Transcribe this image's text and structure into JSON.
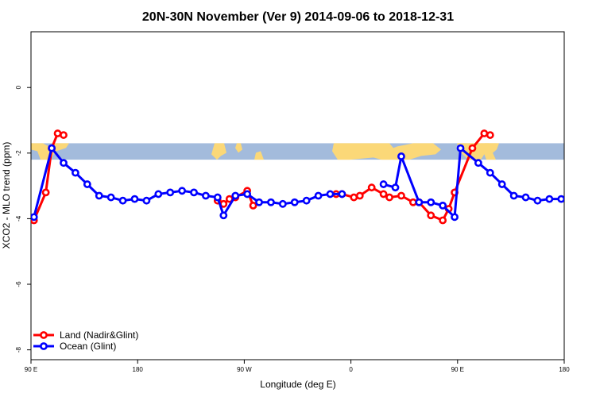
{
  "chart_data": {
    "type": "line",
    "title": "20N-30N November (Ver 9)   2014-09-06 to 2018-12-31",
    "xlabel": "Longitude (deg E)",
    "ylabel": "XCO2 - MLO trend (ppm)",
    "xlim": [
      90,
      540
    ],
    "ylim": [
      -8.3,
      1.7
    ],
    "x_ticks": [
      {
        "value": 90,
        "label": "90 E"
      },
      {
        "value": 180,
        "label": "180"
      },
      {
        "value": 270,
        "label": "90 W"
      },
      {
        "value": 360,
        "label": "0"
      },
      {
        "value": 450,
        "label": "90 E"
      },
      {
        "value": 540,
        "label": "180"
      }
    ],
    "y_ticks": [
      {
        "value": 0,
        "label": "0"
      },
      {
        "value": -2,
        "label": "-2"
      },
      {
        "value": -4,
        "label": "-4"
      },
      {
        "value": -6,
        "label": "-6"
      },
      {
        "value": -8,
        "label": "-8"
      }
    ],
    "map_strip": {
      "y_range": [
        -2.2,
        -1.7
      ],
      "ocean_color": "#a3bbdc",
      "land_color": "#fbd878"
    },
    "series": [
      {
        "name": "Land (Nadir&Glint)",
        "color": "#ff0000",
        "x": [
          92.5,
          102.5,
          107.5,
          112.5,
          117.5,
          247.5,
          252.5,
          257.5,
          262.5,
          272.5,
          277.5,
          347.5,
          352.5,
          362.5,
          367.5,
          377.5,
          387.5,
          392.5,
          402.5,
          412.5,
          417.5,
          427.5,
          437.5,
          442.5,
          447.5,
          462.5,
          472.5,
          477.5
        ],
        "y": [
          -4.05,
          -3.2,
          -1.85,
          -1.4,
          -1.45,
          -3.45,
          -3.55,
          -3.4,
          -3.35,
          -3.15,
          -3.6,
          -3.25,
          -3.25,
          -3.35,
          -3.3,
          -3.05,
          -3.25,
          -3.35,
          -3.3,
          -3.5,
          -3.5,
          -3.9,
          -4.05,
          -3.7,
          -3.2,
          -1.85,
          -1.4,
          -1.45
        ],
        "segments": [
          [
            0,
            5
          ],
          [
            5,
            11
          ],
          [
            11,
            28
          ]
        ]
      },
      {
        "name": "Ocean (Glint)",
        "color": "#0000ff",
        "x": [
          92.5,
          107.5,
          117.5,
          127.5,
          137.5,
          147.5,
          157.5,
          167.5,
          177.5,
          187.5,
          197.5,
          207.5,
          217.5,
          227.5,
          237.5,
          247.5,
          252.5,
          262.5,
          272.5,
          282.5,
          292.5,
          302.5,
          312.5,
          322.5,
          332.5,
          342.5,
          352.5,
          387.5,
          397.5,
          402.5,
          417.5,
          427.5,
          437.5,
          447.5,
          452.5,
          467.5,
          477.5,
          487.5,
          497.5,
          507.5,
          517.5,
          527.5,
          537.5
        ],
        "y": [
          -3.95,
          -1.85,
          -2.3,
          -2.6,
          -2.95,
          -3.3,
          -3.35,
          -3.45,
          -3.4,
          -3.45,
          -3.25,
          -3.2,
          -3.15,
          -3.2,
          -3.3,
          -3.35,
          -3.9,
          -3.3,
          -3.25,
          -3.5,
          -3.5,
          -3.55,
          -3.5,
          -3.45,
          -3.3,
          -3.25,
          -3.25,
          -2.95,
          -3.05,
          -2.1,
          -3.5,
          -3.5,
          -3.6,
          -3.95,
          -1.85,
          -2.3,
          -2.6,
          -2.95,
          -3.3,
          -3.35,
          -3.45,
          -3.4,
          -3.4
        ],
        "segments": [
          [
            0,
            27
          ],
          [
            27,
            43
          ]
        ]
      }
    ],
    "legend": {
      "position": "bottom-left"
    }
  }
}
